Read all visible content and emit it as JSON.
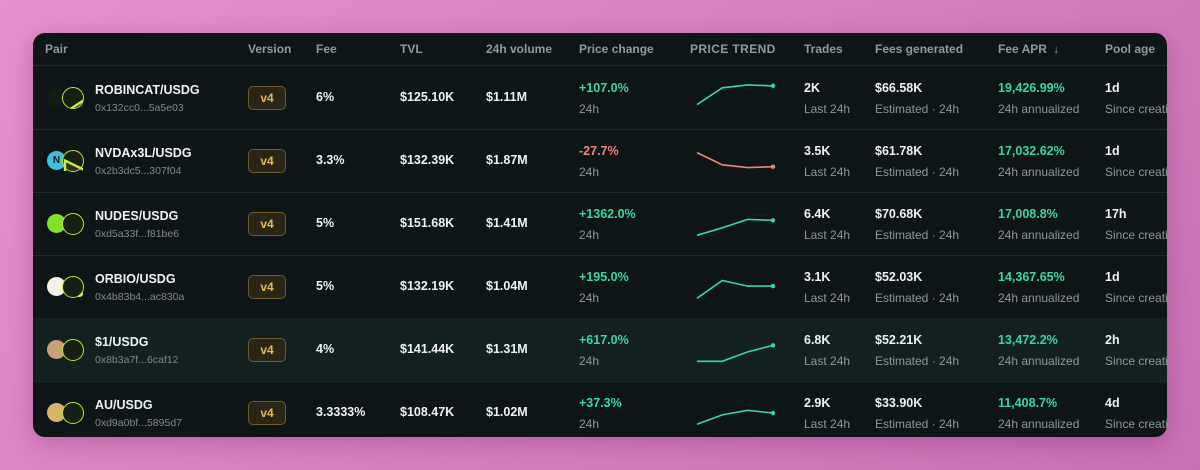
{
  "header": {
    "pair": "Pair",
    "version": "Version",
    "fee": "Fee",
    "tvl": "TVL",
    "volume": "24h volume",
    "price_change": "Price change",
    "price_trend": "PRICE TREND",
    "trades": "Trades",
    "fees_generated": "Fees generated",
    "fee_apr": "Fee APR",
    "sort_arrow": "↓",
    "pool_age": "Pool age"
  },
  "colors": {
    "positive": "#36d8a0",
    "negative": "#f0857d",
    "badge_text": "#e7b957",
    "usdg_ring": "#b8e83a"
  },
  "rows": [
    {
      "pair": "ROBINCAT/USDG",
      "address": "0x132cc0...5a5e03",
      "version": "v4",
      "fee": "6%",
      "tvl": "$125.10K",
      "volume": "$1.11M",
      "change": "+107.0%",
      "change_period": "24h",
      "direction": "up",
      "trend": [
        10,
        28,
        31,
        30
      ],
      "trades": "2K",
      "trades_sub": "Last 24h",
      "fees": "$66.58K",
      "fees_sub": "Estimated · 24h",
      "apr": "19,426.99%",
      "apr_sub": "24h annualized",
      "age": "1d",
      "age_sub": "Since creation",
      "token_icon": "robincat-icon",
      "token_glyph": "",
      "token_color": "#141a14",
      "token_text_color": "#ffffff"
    },
    {
      "pair": "NVDAx3L/USDG",
      "address": "0x2b3dc5...307f04",
      "version": "v4",
      "fee": "3.3%",
      "tvl": "$132.39K",
      "volume": "$1.87M",
      "change": "-27.7%",
      "change_period": "24h",
      "direction": "down",
      "trend": [
        26,
        13,
        10,
        11
      ],
      "trades": "3.5K",
      "trades_sub": "Last 24h",
      "fees": "$61.78K",
      "fees_sub": "Estimated · 24h",
      "apr": "17,032.62%",
      "apr_sub": "24h annualized",
      "age": "1d",
      "age_sub": "Since creation",
      "token_icon": "nvda-icon",
      "token_glyph": "N",
      "token_color": "#3ec0dc",
      "token_text_color": "#0d1517"
    },
    {
      "pair": "NUDES/USDG",
      "address": "0xd5a33f...f81be6",
      "version": "v4",
      "fee": "5%",
      "tvl": "$151.68K",
      "volume": "$1.41M",
      "change": "+1362.0%",
      "change_period": "24h",
      "direction": "up",
      "trend": [
        5,
        13,
        22,
        21
      ],
      "trades": "6.4K",
      "trades_sub": "Last 24h",
      "fees": "$70.68K",
      "fees_sub": "Estimated · 24h",
      "apr": "17,008.8%",
      "apr_sub": "24h annualized",
      "age": "17h",
      "age_sub": "Since creation",
      "token_icon": "nudes-icon",
      "token_glyph": "",
      "token_color": "#7fe12a",
      "token_text_color": "#0d1517"
    },
    {
      "pair": "ORBIO/USDG",
      "address": "0x4b83b4...ac830a",
      "version": "v4",
      "fee": "5%",
      "tvl": "$132.19K",
      "volume": "$1.04M",
      "change": "+195.0%",
      "change_period": "24h",
      "direction": "up",
      "trend": [
        5,
        24,
        18,
        18
      ],
      "trades": "3.1K",
      "trades_sub": "Last 24h",
      "fees": "$52.03K",
      "fees_sub": "Estimated · 24h",
      "apr": "14,367.65%",
      "apr_sub": "24h annualized",
      "age": "1d",
      "age_sub": "Since creation",
      "token_icon": "orbio-icon",
      "token_glyph": "",
      "token_color": "#f4f1ea",
      "token_text_color": "#0d1517"
    },
    {
      "pair": "$1/USDG",
      "address": "0x8b3a7f...6caf12",
      "version": "v4",
      "fee": "4%",
      "tvl": "$141.44K",
      "volume": "$1.31M",
      "change": "+617.0%",
      "change_period": "24h",
      "direction": "up",
      "trend": [
        5,
        5,
        15,
        22
      ],
      "trades": "6.8K",
      "trades_sub": "Last 24h",
      "fees": "$52.21K",
      "fees_sub": "Estimated · 24h",
      "apr": "13,472.2%",
      "apr_sub": "24h annualized",
      "age": "2h",
      "age_sub": "Since creation",
      "token_icon": "one-dollar-icon",
      "token_glyph": "",
      "token_color": "#c9a07a",
      "token_text_color": "#0d1517"
    },
    {
      "pair": "AU/USDG",
      "address": "0xd9a0bf...5895d7",
      "version": "v4",
      "fee": "3.3333%",
      "tvl": "$108.47K",
      "volume": "$1.02M",
      "change": "+37.3%",
      "change_period": "24h",
      "direction": "up",
      "trend": [
        5,
        15,
        20,
        17
      ],
      "trades": "2.9K",
      "trades_sub": "Last 24h",
      "fees": "$33.90K",
      "fees_sub": "Estimated · 24h",
      "apr": "11,408.7%",
      "apr_sub": "24h annualized",
      "age": "4d",
      "age_sub": "Since creation",
      "token_icon": "au-icon",
      "token_glyph": "",
      "token_color": "#d7b46a",
      "token_text_color": "#0d1517"
    }
  ]
}
